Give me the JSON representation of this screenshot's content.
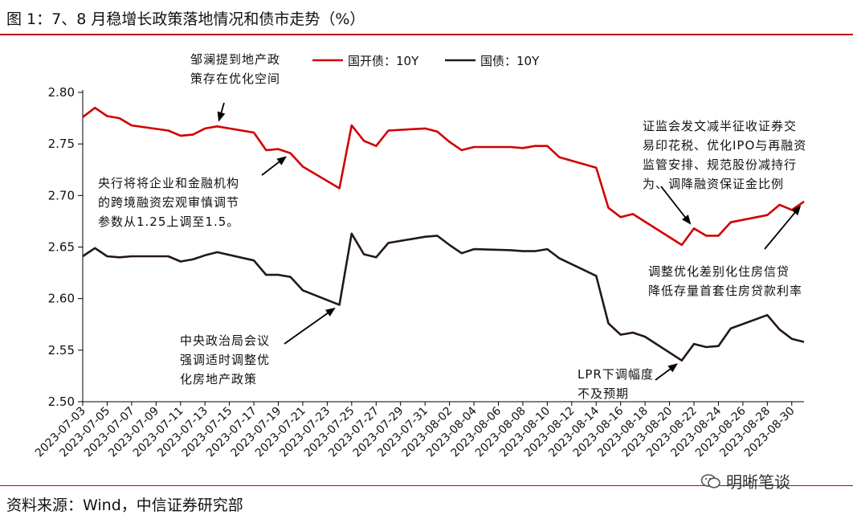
{
  "title": "图 1：7、8 月稳增长政策落地情况和债市走势（%）",
  "source": "资料来源：Wind，中信证券研究部",
  "watermark": "明晰笔谈",
  "colors": {
    "cdb": "#d00000",
    "gov": "#231815",
    "rule": "#c00000"
  },
  "chart_data": {
    "type": "line",
    "ylim": [
      2.5,
      2.8
    ],
    "yticks": [
      "2.50",
      "2.55",
      "2.60",
      "2.65",
      "2.70",
      "2.75",
      "2.80"
    ],
    "xtick_labels": [
      "2023-07-03",
      "2023-07-05",
      "2023-07-07",
      "2023-07-09",
      "2023-07-11",
      "2023-07-13",
      "2023-07-15",
      "2023-07-17",
      "2023-07-19",
      "2023-07-21",
      "2023-07-23",
      "2023-07-25",
      "2023-07-27",
      "2023-07-29",
      "2023-07-31",
      "2023-08-02",
      "2023-08-04",
      "2023-08-06",
      "2023-08-08",
      "2023-08-10",
      "2023-08-12",
      "2023-08-14",
      "2023-08-16",
      "2023-08-18",
      "2023-08-20",
      "2023-08-22",
      "2023-08-24",
      "2023-08-26",
      "2023-08-28",
      "2023-08-30"
    ],
    "x_first": "2023-07-03",
    "x_last": "2023-08-31",
    "legend_position": "top-center",
    "series": [
      {
        "name": "国开债：10Y",
        "color": "#d00000",
        "points": [
          [
            "2023-07-03",
            2.776
          ],
          [
            "2023-07-04",
            2.785
          ],
          [
            "2023-07-05",
            2.777
          ],
          [
            "2023-07-06",
            2.775
          ],
          [
            "2023-07-07",
            2.768
          ],
          [
            "2023-07-10",
            2.763
          ],
          [
            "2023-07-11",
            2.758
          ],
          [
            "2023-07-12",
            2.759
          ],
          [
            "2023-07-13",
            2.765
          ],
          [
            "2023-07-14",
            2.767
          ],
          [
            "2023-07-17",
            2.761
          ],
          [
            "2023-07-18",
            2.744
          ],
          [
            "2023-07-19",
            2.745
          ],
          [
            "2023-07-20",
            2.741
          ],
          [
            "2023-07-21",
            2.728
          ],
          [
            "2023-07-24",
            2.707
          ],
          [
            "2023-07-25",
            2.768
          ],
          [
            "2023-07-26",
            2.753
          ],
          [
            "2023-07-27",
            2.748
          ],
          [
            "2023-07-28",
            2.763
          ],
          [
            "2023-07-31",
            2.765
          ],
          [
            "2023-08-01",
            2.762
          ],
          [
            "2023-08-02",
            2.752
          ],
          [
            "2023-08-03",
            2.744
          ],
          [
            "2023-08-04",
            2.747
          ],
          [
            "2023-08-07",
            2.747
          ],
          [
            "2023-08-08",
            2.746
          ],
          [
            "2023-08-09",
            2.748
          ],
          [
            "2023-08-10",
            2.748
          ],
          [
            "2023-08-11",
            2.737
          ],
          [
            "2023-08-14",
            2.727
          ],
          [
            "2023-08-15",
            2.688
          ],
          [
            "2023-08-16",
            2.679
          ],
          [
            "2023-08-17",
            2.682
          ],
          [
            "2023-08-21",
            2.652
          ],
          [
            "2023-08-22",
            2.668
          ],
          [
            "2023-08-23",
            2.661
          ],
          [
            "2023-08-24",
            2.661
          ],
          [
            "2023-08-25",
            2.674
          ],
          [
            "2023-08-28",
            2.681
          ],
          [
            "2023-08-29",
            2.691
          ],
          [
            "2023-08-30",
            2.686
          ],
          [
            "2023-08-31",
            2.694
          ]
        ]
      },
      {
        "name": "国债：10Y",
        "color": "#231815",
        "points": [
          [
            "2023-07-03",
            2.641
          ],
          [
            "2023-07-04",
            2.649
          ],
          [
            "2023-07-05",
            2.641
          ],
          [
            "2023-07-06",
            2.64
          ],
          [
            "2023-07-07",
            2.641
          ],
          [
            "2023-07-10",
            2.641
          ],
          [
            "2023-07-11",
            2.636
          ],
          [
            "2023-07-12",
            2.638
          ],
          [
            "2023-07-13",
            2.642
          ],
          [
            "2023-07-14",
            2.645
          ],
          [
            "2023-07-17",
            2.637
          ],
          [
            "2023-07-18",
            2.623
          ],
          [
            "2023-07-19",
            2.623
          ],
          [
            "2023-07-20",
            2.621
          ],
          [
            "2023-07-21",
            2.608
          ],
          [
            "2023-07-24",
            2.594
          ],
          [
            "2023-07-25",
            2.663
          ],
          [
            "2023-07-26",
            2.643
          ],
          [
            "2023-07-27",
            2.64
          ],
          [
            "2023-07-28",
            2.654
          ],
          [
            "2023-07-31",
            2.66
          ],
          [
            "2023-08-01",
            2.661
          ],
          [
            "2023-08-02",
            2.652
          ],
          [
            "2023-08-03",
            2.644
          ],
          [
            "2023-08-04",
            2.648
          ],
          [
            "2023-08-07",
            2.647
          ],
          [
            "2023-08-08",
            2.646
          ],
          [
            "2023-08-09",
            2.646
          ],
          [
            "2023-08-10",
            2.648
          ],
          [
            "2023-08-11",
            2.639
          ],
          [
            "2023-08-14",
            2.622
          ],
          [
            "2023-08-15",
            2.576
          ],
          [
            "2023-08-16",
            2.565
          ],
          [
            "2023-08-17",
            2.567
          ],
          [
            "2023-08-18",
            2.563
          ],
          [
            "2023-08-21",
            2.54
          ],
          [
            "2023-08-22",
            2.556
          ],
          [
            "2023-08-23",
            2.553
          ],
          [
            "2023-08-24",
            2.554
          ],
          [
            "2023-08-25",
            2.571
          ],
          [
            "2023-08-28",
            2.584
          ],
          [
            "2023-08-29",
            2.57
          ],
          [
            "2023-08-30",
            2.561
          ],
          [
            "2023-08-31",
            2.558
          ]
        ]
      }
    ],
    "annotations": [
      {
        "lines": [
          "邹澜提到地产政",
          "策存在优化空间"
        ],
        "points_to": [
          "2023-07-14",
          2.767
        ]
      },
      {
        "lines": [
          "央行将将企业和金融机构",
          "的跨境融资宏观审慎调节",
          "参数从1.25上调至1.5。"
        ],
        "points_to": [
          "2023-07-20",
          2.741
        ]
      },
      {
        "lines": [
          "中央政治局会议",
          "强调适时调整优",
          "化房地产政策"
        ],
        "points_to": [
          "2023-07-24",
          2.594
        ]
      },
      {
        "lines": [
          "证监会发文减半征收证券交",
          "易印花税、优化IPO与再融资",
          "监管安排、规范股份减持行",
          "为、调降融资保证金比例"
        ],
        "points_to": [
          "2023-08-22",
          2.668
        ]
      },
      {
        "lines": [
          "调整优化差别化住房信贷",
          "降低存量首套住房贷款利率"
        ],
        "points_to": [
          "2023-08-31",
          2.694
        ]
      },
      {
        "lines": [
          "LPR下调幅度",
          "不及预期"
        ],
        "points_to": [
          "2023-08-21",
          2.54
        ]
      }
    ]
  }
}
